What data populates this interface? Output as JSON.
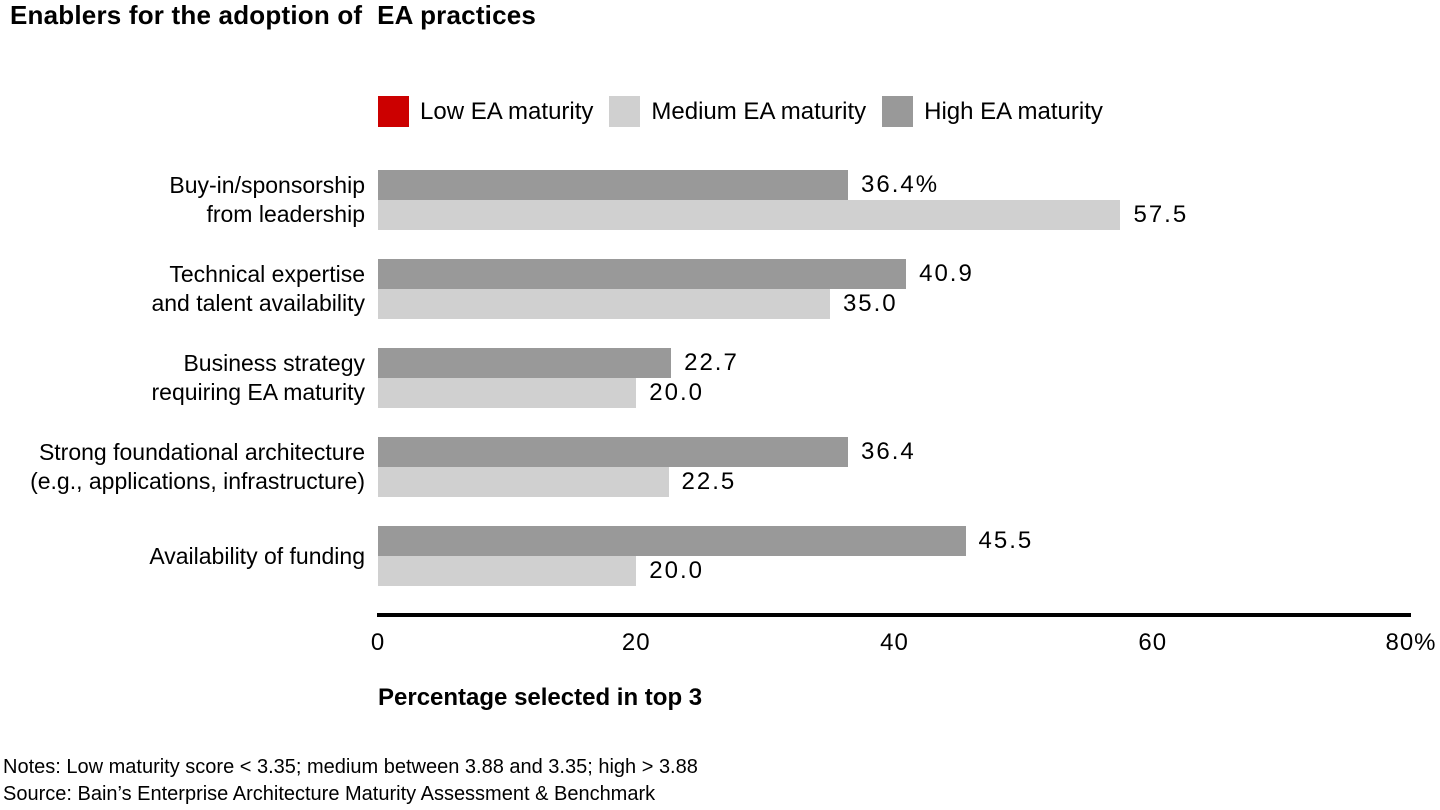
{
  "title": "Enablers for the adoption of  EA practices",
  "legend": [
    {
      "label": "Low EA maturity",
      "color": "#cc0000"
    },
    {
      "label": "Medium EA maturity",
      "color": "#d0d0d0"
    },
    {
      "label": "High EA maturity",
      "color": "#999999"
    }
  ],
  "chart_data": {
    "type": "bar",
    "orientation": "horizontal",
    "title": "Enablers for the adoption of  EA practices",
    "xlabel": "Percentage selected in top 3",
    "xlim": [
      0,
      80
    ],
    "x_ticks": [
      "0",
      "20",
      "40",
      "60",
      "80%"
    ],
    "grid": false,
    "legend_position": "top",
    "categories": [
      [
        "Buy-in/sponsorship",
        "from leadership"
      ],
      [
        "Technical expertise",
        "and talent availability"
      ],
      [
        "Business strategy",
        "requiring EA maturity"
      ],
      [
        "Strong foundational architecture",
        "(e.g., applications, infrastructure)"
      ],
      [
        "Availability of funding"
      ]
    ],
    "series": [
      {
        "name": "High EA maturity",
        "color": "#999999",
        "values": [
          36.4,
          40.9,
          22.7,
          36.4,
          45.5
        ],
        "value_labels": [
          "36.4%",
          "40.9",
          "22.7",
          "36.4",
          "45.5"
        ]
      },
      {
        "name": "Medium EA maturity",
        "color": "#d0d0d0",
        "values": [
          57.5,
          35.0,
          20.0,
          22.5,
          20.0
        ],
        "value_labels": [
          "57.5",
          "35.0",
          "20.0",
          "22.5",
          "20.0"
        ]
      }
    ]
  },
  "footer": {
    "notes": "Notes: Low maturity score < 3.35; medium between 3.88 and 3.35; high > 3.88",
    "source": "Source: Bain’s Enterprise Architecture Maturity Assessment & Benchmark"
  }
}
